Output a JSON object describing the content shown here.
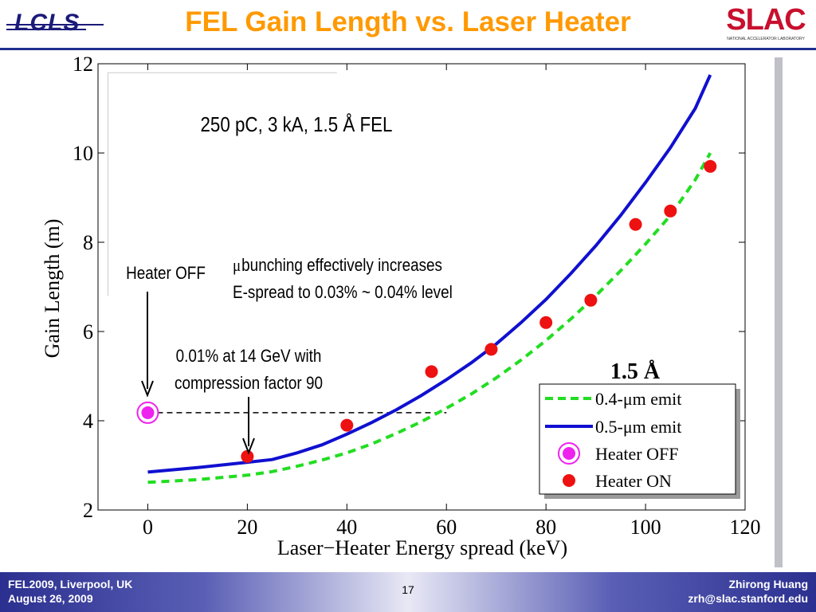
{
  "header": {
    "title": "FEL Gain Length vs. Laser Heater",
    "left_logo_text": "LCLS",
    "right_logo_text": "SLAC",
    "right_logo_sub": "NATIONAL ACCELERATOR LABORATORY"
  },
  "footer": {
    "left_line1": "FEL2009, Liverpool, UK",
    "left_line2": "August 26, 2009",
    "page": "17",
    "right_line1": "Zhirong Huang",
    "right_line2": "zrh@slac.stanford.edu"
  },
  "annotations": {
    "inset_title": "250 pC, 3 kA, 1.5 Å FEL",
    "heater_off": "Heater OFF",
    "mubunching_line1": "bunching effectively increases",
    "mubunching_mu": "μ",
    "mubunching_line2": "E-spread to 0.03% ~ 0.04% level",
    "compression_line1": "0.01% at 14 GeV with",
    "compression_line2": "compression factor 90",
    "legend_header": "1.5 Å"
  },
  "colors": {
    "title": "#ff9900",
    "emit04": "#22dd22",
    "emit05": "#1010d0",
    "heater_off": "#ee22ee",
    "heater_on": "#ee1111"
  },
  "chart_data": {
    "type": "line",
    "xlabel": "Laser−Heater Energy spread (keV)",
    "ylabel": "Gain Length (m)",
    "xlim": [
      -10,
      120
    ],
    "ylim": [
      2,
      12
    ],
    "xticks": [
      0,
      20,
      40,
      60,
      80,
      100,
      120
    ],
    "yticks": [
      2,
      4,
      6,
      8,
      10,
      12
    ],
    "grid": false,
    "legend_placement": "lower-right",
    "series": [
      {
        "name": "0.4-μm emit",
        "kind": "line",
        "style": "dashed",
        "color": "#22dd22",
        "x": [
          0,
          10,
          20,
          25,
          30,
          35,
          40,
          45,
          50,
          55,
          60,
          65,
          70,
          75,
          80,
          85,
          90,
          95,
          100,
          105,
          110,
          113
        ],
        "y": [
          2.62,
          2.68,
          2.78,
          2.86,
          2.98,
          3.12,
          3.28,
          3.48,
          3.72,
          3.98,
          4.28,
          4.6,
          4.96,
          5.36,
          5.8,
          6.28,
          6.8,
          7.36,
          7.96,
          8.6,
          9.4,
          10.0
        ]
      },
      {
        "name": "0.5-μm emit",
        "kind": "line",
        "style": "solid",
        "color": "#1010d0",
        "x": [
          0,
          10,
          20,
          25,
          30,
          35,
          40,
          45,
          50,
          55,
          60,
          65,
          70,
          75,
          80,
          85,
          90,
          95,
          100,
          105,
          110,
          113
        ],
        "y": [
          2.85,
          2.95,
          3.07,
          3.13,
          3.28,
          3.46,
          3.7,
          3.96,
          4.25,
          4.57,
          4.92,
          5.3,
          5.72,
          6.2,
          6.72,
          7.3,
          7.92,
          8.6,
          9.34,
          10.12,
          11.0,
          11.75
        ]
      },
      {
        "name": "Heater OFF",
        "kind": "scatter",
        "marker": "ringed-dot",
        "color": "#ee22ee",
        "x": [
          0
        ],
        "y": [
          4.18
        ]
      },
      {
        "name": "Heater ON",
        "kind": "scatter",
        "marker": "dot",
        "color": "#ee1111",
        "x": [
          20,
          40,
          57,
          69,
          80,
          89,
          98,
          105,
          113
        ],
        "y": [
          3.2,
          3.9,
          5.1,
          5.6,
          6.2,
          6.7,
          8.4,
          8.7,
          9.7
        ]
      }
    ],
    "reference_line": {
      "x": [
        0,
        60
      ],
      "y": [
        4.18,
        4.18
      ],
      "style": "dashed",
      "color": "#000000"
    }
  }
}
